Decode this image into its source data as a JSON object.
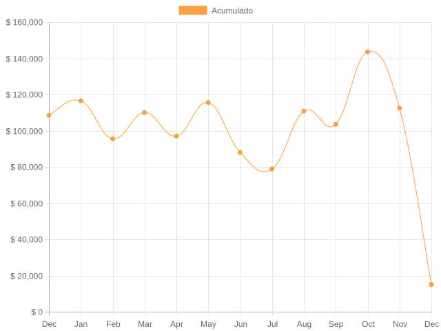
{
  "chart_data": {
    "type": "line",
    "title": "",
    "xlabel": "",
    "ylabel": "",
    "categories": [
      "Dec",
      "Jan",
      "Feb",
      "Mar",
      "Apr",
      "May",
      "Jun",
      "Jul",
      "Aug",
      "Sep",
      "Oct",
      "Nov",
      "Dec"
    ],
    "series": [
      {
        "name": "Acumulado",
        "color": "#ff9f40",
        "values": [
          108500,
          116500,
          95500,
          110000,
          97000,
          115500,
          88000,
          78800,
          110800,
          103500,
          143500,
          112500,
          15000
        ]
      }
    ],
    "ylim": [
      0,
      160000
    ],
    "y_ticks": [
      "$ 0",
      "$ 20,000",
      "$ 40,000",
      "$ 60,000",
      "$ 80,000",
      "$ 100,000",
      "$ 120,000",
      "$ 140,000",
      "$ 160,000"
    ],
    "grid": true,
    "legend_position": "top",
    "curve": "smooth",
    "grid_color": "#e6e6e6",
    "axis_color": "#b3b3b3",
    "tick_text_color": "#666666"
  }
}
